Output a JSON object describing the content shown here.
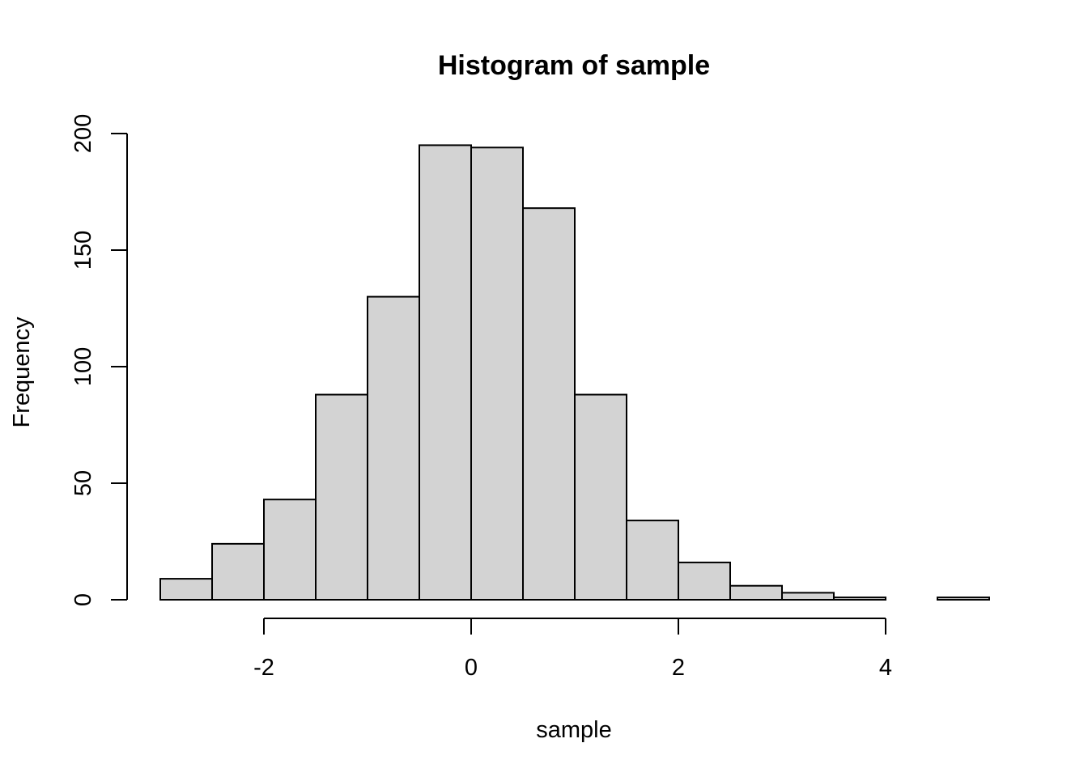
{
  "chart_data": {
    "type": "bar",
    "title": "Histogram of sample",
    "xlabel": "sample",
    "ylabel": "Frequency",
    "bins": [
      {
        "x0": -3.0,
        "x1": -2.5,
        "count": 9
      },
      {
        "x0": -2.5,
        "x1": -2.0,
        "count": 24
      },
      {
        "x0": -2.0,
        "x1": -1.5,
        "count": 43
      },
      {
        "x0": -1.5,
        "x1": -1.0,
        "count": 88
      },
      {
        "x0": -1.0,
        "x1": -0.5,
        "count": 130
      },
      {
        "x0": -0.5,
        "x1": 0.0,
        "count": 195
      },
      {
        "x0": 0.0,
        "x1": 0.5,
        "count": 194
      },
      {
        "x0": 0.5,
        "x1": 1.0,
        "count": 168
      },
      {
        "x0": 1.0,
        "x1": 1.5,
        "count": 88
      },
      {
        "x0": 1.5,
        "x1": 2.0,
        "count": 34
      },
      {
        "x0": 2.0,
        "x1": 2.5,
        "count": 16
      },
      {
        "x0": 2.5,
        "x1": 3.0,
        "count": 6
      },
      {
        "x0": 3.0,
        "x1": 3.5,
        "count": 3
      },
      {
        "x0": 3.5,
        "x1": 4.0,
        "count": 1
      },
      {
        "x0": 4.0,
        "x1": 4.5,
        "count": 0
      },
      {
        "x0": 4.5,
        "x1": 5.0,
        "count": 1
      }
    ],
    "x_ticks": [
      -2,
      0,
      2,
      4
    ],
    "x_tick_labels": [
      "-2",
      "0",
      "2",
      "4"
    ],
    "y_ticks": [
      0,
      50,
      100,
      150,
      200
    ],
    "y_tick_labels": [
      "0",
      "50",
      "100",
      "150",
      "200"
    ],
    "xlim": [
      -3,
      5
    ],
    "ylim": [
      0,
      200
    ],
    "grid": false,
    "colors": {
      "bar_fill": "#d3d3d3",
      "bar_stroke": "#000000"
    }
  }
}
